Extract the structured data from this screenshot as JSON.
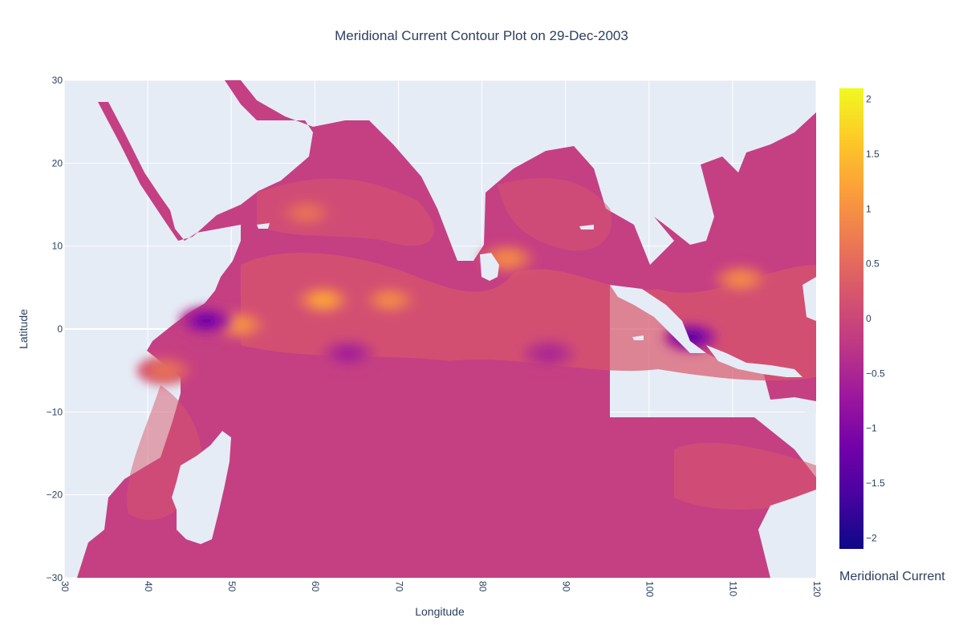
{
  "chart_data": {
    "type": "contour",
    "title": "Meridional Current Contour Plot on 29-Dec-2003",
    "xlabel": "Longitude",
    "ylabel": "Latitude",
    "xlim": [
      30,
      120
    ],
    "ylim": [
      -30,
      30
    ],
    "x_ticks": [
      "30",
      "40",
      "50",
      "60",
      "70",
      "80",
      "90",
      "100",
      "110",
      "120"
    ],
    "y_ticks": [
      "30",
      "20",
      "10",
      "0",
      "−10",
      "−20",
      "−30"
    ],
    "grid": true,
    "colorscale": "plasma",
    "colorbar": {
      "title": "Meridional Current",
      "range": [
        -2.1,
        2.1
      ],
      "ticks": [
        "2",
        "1.5",
        "1",
        "0.5",
        "0",
        "−0.5",
        "−1",
        "−1.5",
        "−2"
      ]
    },
    "features": [
      {
        "lon": 51,
        "lat": 0.5,
        "value": 1.0
      },
      {
        "lon": 61,
        "lat": 3.5,
        "value": 1.2
      },
      {
        "lon": 69,
        "lat": 3.5,
        "value": 0.9
      },
      {
        "lon": 83,
        "lat": 8.5,
        "value": 0.9
      },
      {
        "lon": 111,
        "lat": 6,
        "value": 0.9
      },
      {
        "lon": 47,
        "lat": 1,
        "value": -1.2
      },
      {
        "lon": 105,
        "lat": -1,
        "value": -1.4
      },
      {
        "lon": 64,
        "lat": -3,
        "value": -0.6
      },
      {
        "lon": 88,
        "lat": -3,
        "value": -0.5
      },
      {
        "lon": 42,
        "lat": -5,
        "value": 0.6
      },
      {
        "lon": 59,
        "lat": 14,
        "value": 0.6
      }
    ]
  }
}
